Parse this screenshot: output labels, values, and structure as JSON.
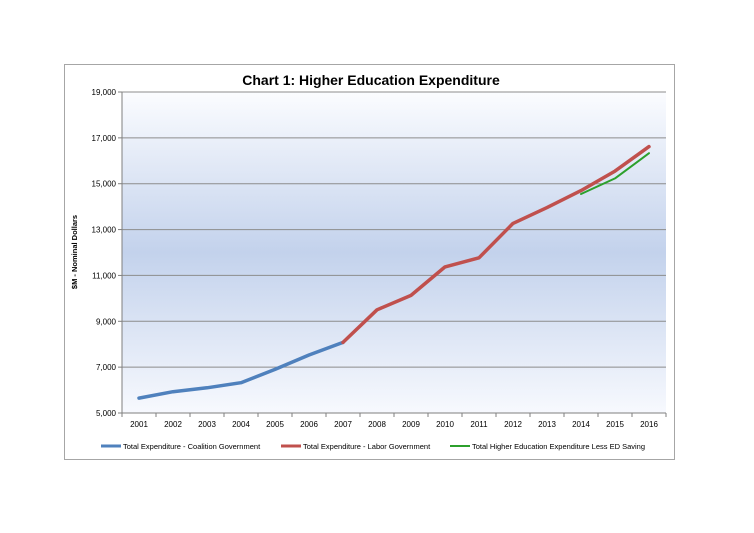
{
  "chart_data": {
    "type": "line",
    "title": "Chart 1: Higher Education Expenditure",
    "xlabel": "",
    "ylabel": "$M - Nominal Dollars",
    "categories": [
      "2001",
      "2002",
      "2003",
      "2004",
      "2005",
      "2006",
      "2007",
      "2008",
      "2009",
      "2010",
      "2011",
      "2012",
      "2013",
      "2014",
      "2015",
      "2016"
    ],
    "y_ticks": [
      "5,000",
      "7,000",
      "9,000",
      "11,000",
      "13,000",
      "15,000",
      "17,000",
      "19,000"
    ],
    "ylim": [
      5000,
      19000
    ],
    "grid": true,
    "legend_position": "bottom",
    "series": [
      {
        "name": "Total  Expenditure - Coalition Government",
        "color": "#4f81bd",
        "x": [
          "2001",
          "2002",
          "2003",
          "2004",
          "2005",
          "2006",
          "2007"
        ],
        "values": [
          5650,
          5930,
          6100,
          6320,
          6900,
          7530,
          8080
        ]
      },
      {
        "name": "Total  Expenditure - Labor Government",
        "color": "#c0504d",
        "x": [
          "2007",
          "2008",
          "2009",
          "2010",
          "2011",
          "2012",
          "2013",
          "2014",
          "2015",
          "2016"
        ],
        "values": [
          8080,
          9500,
          10130,
          11370,
          11770,
          13270,
          13960,
          14700,
          15550,
          16620
        ]
      },
      {
        "name": "Total Higher Education Expenditure Less ED Saving",
        "color": "#2ca02c",
        "x": [
          "2014",
          "2015",
          "2016"
        ],
        "values": [
          14550,
          15230,
          16330
        ]
      }
    ]
  }
}
